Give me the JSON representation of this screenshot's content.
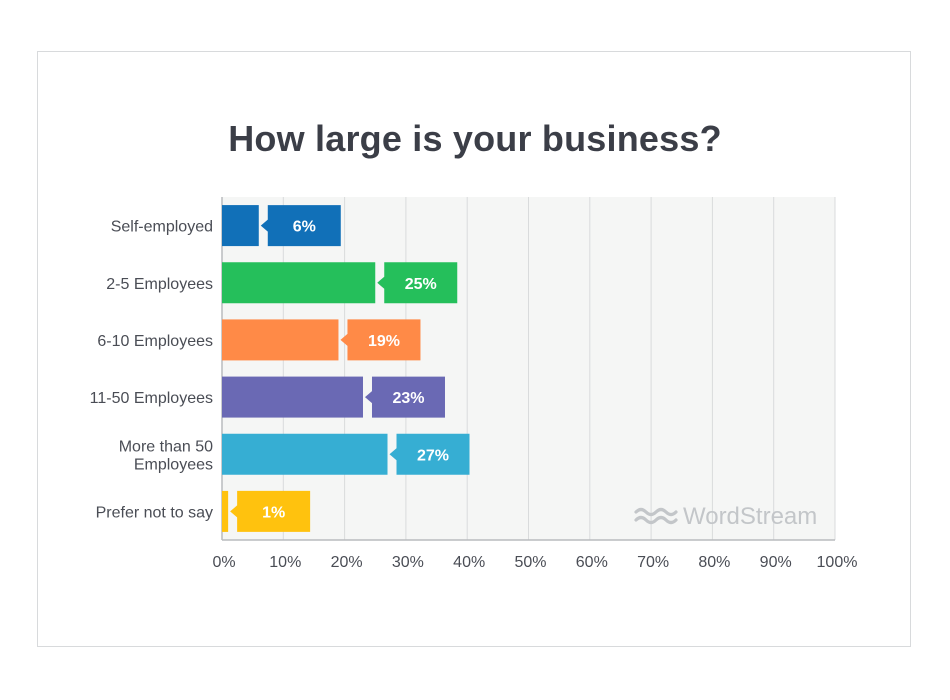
{
  "chart_data": {
    "type": "bar",
    "orientation": "horizontal",
    "title": "How large is your business?",
    "categories": [
      "Self-employed",
      "2-5 Employees",
      "6-10 Employees",
      "11-50 Employees",
      "More than 50 Employees",
      "Prefer not to say"
    ],
    "category_lines": [
      [
        "Self-employed"
      ],
      [
        "2-5 Employees"
      ],
      [
        "6-10 Employees"
      ],
      [
        "11-50 Employees"
      ],
      [
        "More than 50",
        "Employees"
      ],
      [
        "Prefer not to say"
      ]
    ],
    "values": [
      6,
      25,
      19,
      23,
      27,
      1
    ],
    "value_labels": [
      "6%",
      "25%",
      "19%",
      "23%",
      "27%",
      "1%"
    ],
    "colors": [
      "#1170b8",
      "#25bf5b",
      "#ff8a47",
      "#6a69b4",
      "#36aed3",
      "#ffc20e"
    ],
    "xlim": [
      0,
      100
    ],
    "x_ticks": [
      0,
      10,
      20,
      30,
      40,
      50,
      60,
      70,
      80,
      90,
      100
    ],
    "x_tick_labels": [
      "0%",
      "10%",
      "20%",
      "30%",
      "40%",
      "50%",
      "60%",
      "70%",
      "80%",
      "90%",
      "100%"
    ],
    "grid": true,
    "xlabel": "",
    "ylabel": ""
  },
  "brand": {
    "name": "WordStream",
    "text_color": "#c3c6c9"
  }
}
